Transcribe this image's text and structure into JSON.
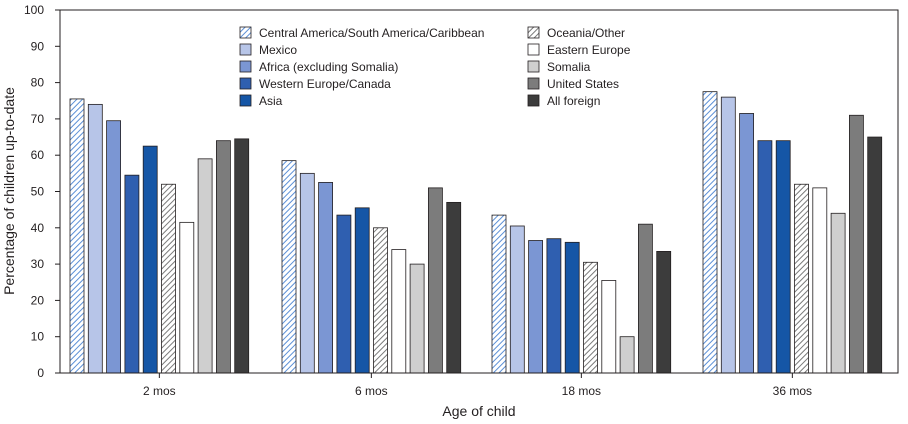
{
  "chart_data": {
    "type": "bar",
    "title": "",
    "xlabel": "Age of child",
    "ylabel": "Percentage of children up-to-date",
    "ylim": [
      0,
      100
    ],
    "yticks": [
      0,
      10,
      20,
      30,
      40,
      50,
      60,
      70,
      80,
      90,
      100
    ],
    "categories": [
      "2 mos",
      "6 mos",
      "18 mos",
      "36 mos"
    ],
    "legend_position": "top-center",
    "series": [
      {
        "name": "Central America/South America/Caribbean",
        "fill": "hatch-blue",
        "values": [
          75.5,
          58.5,
          43.5,
          77.5
        ]
      },
      {
        "name": "Mexico",
        "fill": "#b7c5e8",
        "values": [
          74,
          55,
          40.5,
          76
        ]
      },
      {
        "name": "Africa (excluding Somalia)",
        "fill": "#7b96d3",
        "values": [
          69.5,
          52.5,
          36.5,
          71.5
        ]
      },
      {
        "name": "Western Europe/Canada",
        "fill": "#2f5fb0",
        "values": [
          54.5,
          43.5,
          37,
          64
        ]
      },
      {
        "name": "Asia",
        "fill": "#1556a6",
        "values": [
          62.5,
          45.5,
          36,
          64
        ]
      },
      {
        "name": "Oceania/Other",
        "fill": "hatch-gray",
        "values": [
          52,
          40,
          30.5,
          52
        ]
      },
      {
        "name": "Eastern Europe",
        "fill": "#ffffff",
        "values": [
          41.5,
          34,
          25.5,
          51
        ]
      },
      {
        "name": "Somalia",
        "fill": "#cfcfcf",
        "values": [
          59,
          30,
          10,
          44
        ]
      },
      {
        "name": "United States",
        "fill": "#7c7c7c",
        "values": [
          64,
          51,
          41,
          71
        ]
      },
      {
        "name": "All foreign",
        "fill": "#3c3c3c",
        "values": [
          64.5,
          47,
          33.5,
          65
        ]
      }
    ]
  }
}
